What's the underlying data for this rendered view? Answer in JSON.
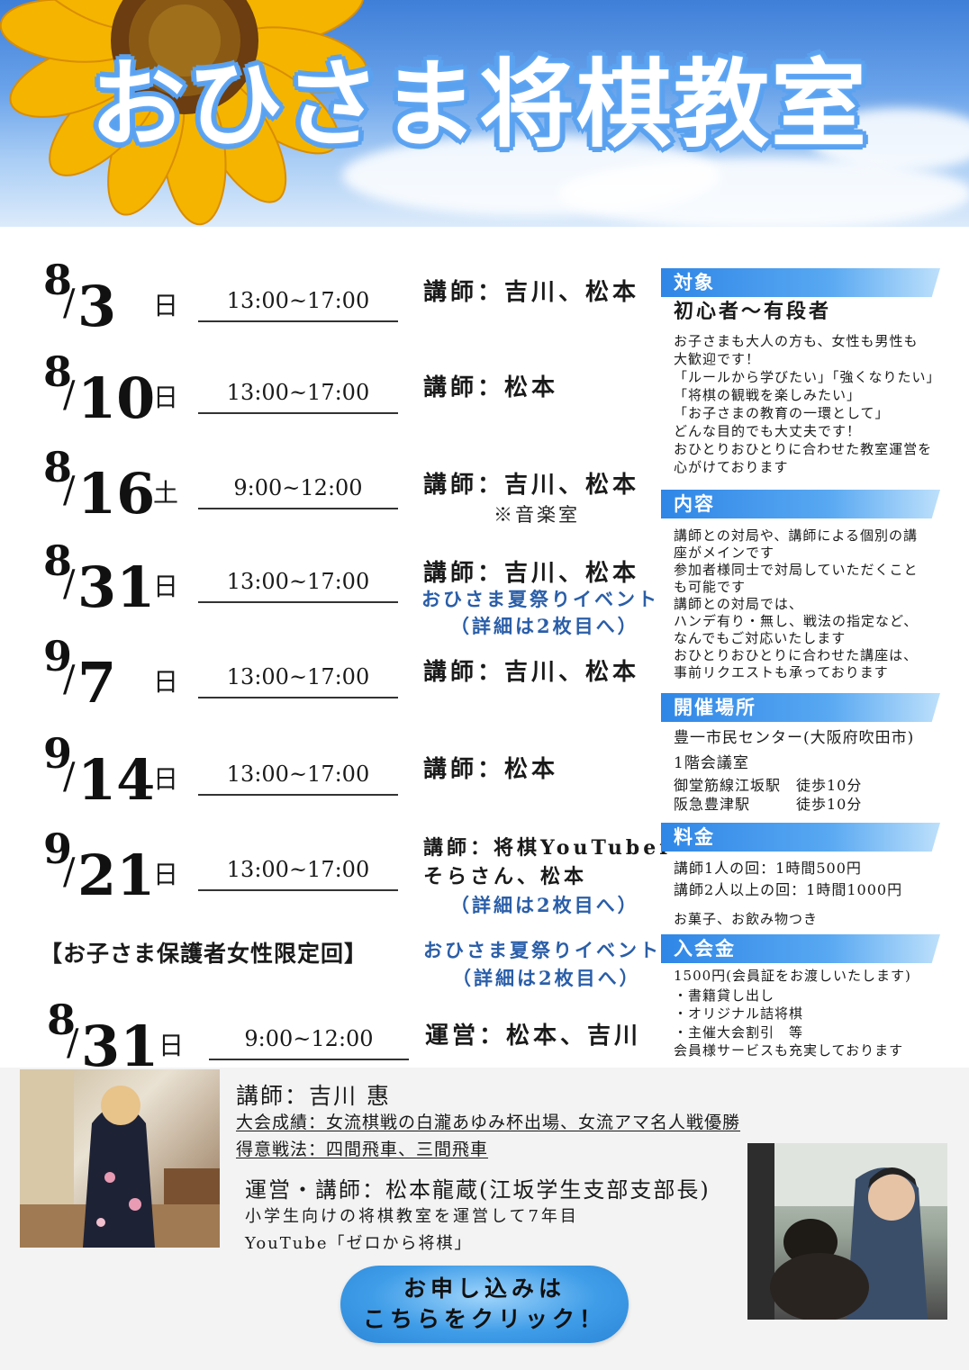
{
  "header": {
    "title": "おひさま将棋教室"
  },
  "schedule": [
    {
      "month": "8",
      "day": "3",
      "dow": "日",
      "time": "13:00~17:00",
      "instructor": "講師：吉川、松本"
    },
    {
      "month": "8",
      "day": "10",
      "dow": "日",
      "time": "13:00~17:00",
      "instructor": "講師：松本"
    },
    {
      "month": "8",
      "day": "16",
      "dow": "土",
      "time": "9:00~12:00",
      "instructor": "講師：吉川、松本",
      "note": "※音楽室"
    },
    {
      "month": "8",
      "day": "31",
      "dow": "日",
      "time": "13:00~17:00",
      "instructor": "講師：吉川、松本",
      "note1": "おひさま夏祭りイベント",
      "note2": "（詳細は2枚目へ）"
    },
    {
      "month": "9",
      "day": "7",
      "dow": "日",
      "time": "13:00~17:00",
      "instructor": "講師：吉川、松本"
    },
    {
      "month": "9",
      "day": "14",
      "dow": "日",
      "time": "13:00~17:00",
      "instructor": "講師：松本"
    },
    {
      "month": "9",
      "day": "21",
      "dow": "日",
      "time": "13:00~17:00",
      "instructor": "講師：将棋YouTuber",
      "instructor2": "そらさん、松本",
      "note": "（詳細は2枚目へ）"
    }
  ],
  "special": {
    "heading": "【お子さま保護者女性限定回】",
    "note1": "おひさま夏祭りイベント",
    "note2": "（詳細は2枚目へ）",
    "month": "8",
    "day": "31",
    "dow": "日",
    "time": "9:00~12:00",
    "instructor": "運営：松本、吉川"
  },
  "info": {
    "target": {
      "label": "対象",
      "headline": "初心者〜有段者",
      "lines": [
        "お子さまも大人の方も、女性も男性も",
        "大歓迎です！",
        "「ルールから学びたい」「強くなりたい」",
        "「将棋の観戦を楽しみたい」",
        "「お子さまの教育の一環として」",
        "どんな目的でも大丈夫です！",
        "おひとりおひとりに合わせた教室運営を",
        "心がけております"
      ]
    },
    "content": {
      "label": "内容",
      "lines": [
        "講師との対局や、講師による個別の講",
        "座がメインです",
        "参加者様同士で対局していただくこと",
        "も可能です",
        "講師との対局では、",
        "ハンデ有り・無し、戦法の指定など、",
        "なんでもご対応いたします",
        "おひとりおひとりに合わせた講座は、",
        "事前リクエストも承っております"
      ]
    },
    "venue": {
      "label": "開催場所",
      "line1": "豊一市民センター(大阪府吹田市)",
      "line2": "1階会議室",
      "line3": "御堂筋線江坂駅　徒歩10分",
      "line4": "阪急豊津駅　　　徒歩10分"
    },
    "fee": {
      "label": "料金",
      "line1": "講師1人の回：1時間500円",
      "line2": "講師2人以上の回：1時間1000円",
      "line3": "お菓子、お飲み物つき"
    },
    "membership": {
      "label": "入会金",
      "lines": [
        "1500円(会員証をお渡しいたします)",
        "・書籍貸し出し",
        "・オリジナル詰将棋",
        "・主催大会割引　等",
        "会員様サービスも充実しております"
      ]
    }
  },
  "profiles": {
    "yoshikawa": {
      "name": "講師：吉川 惠",
      "achievement": "大会成績：女流棋戦の白瀧あゆみ杯出場、女流アマ名人戦優勝",
      "strategy": "得意戦法：四間飛車、三間飛車"
    },
    "matsumoto": {
      "name": "運営・講師：松本龍蔵(江坂学生支部支部長)",
      "line1": "小学生向けの将棋教室を運営して7年目",
      "line2": "YouTube「ゼロから将棋」"
    }
  },
  "cta": {
    "line1": "お申し込みは",
    "line2": "こちらをクリック！"
  }
}
